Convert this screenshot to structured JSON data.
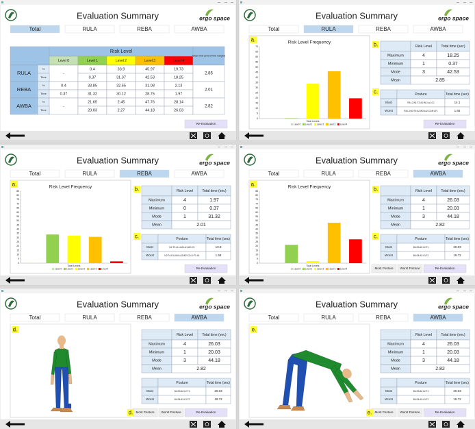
{
  "app": {
    "title": "Evaluation Summary",
    "logo": "ergo space",
    "tabs": [
      "Total",
      "RULA",
      "REBA",
      "AWBA"
    ]
  },
  "total_table": {
    "group_header": "Risk Level",
    "levels": [
      "Level 0",
      "Level 1",
      "Level 2",
      "Level 3",
      "Level 4"
    ],
    "level_colors": [
      "#c5e0b3",
      "#92d050",
      "#ffff00",
      "#ffc000",
      "#ff0000"
    ],
    "mean_header": "Mean risk Level (Time weight)",
    "units": [
      "%",
      "Time"
    ],
    "rows": [
      {
        "method": "RULA",
        "percent": [
          "-",
          0.4,
          33.9,
          45.97,
          19.73
        ],
        "time": [
          null,
          0.37,
          31.37,
          42.53,
          18.25
        ],
        "mean": 2.85
      },
      {
        "method": "REBA",
        "percent": [
          0.4,
          33.85,
          32.55,
          31.08,
          2.13
        ],
        "time": [
          0.37,
          31.32,
          30.12,
          28.75,
          1.97
        ],
        "mean": 2.01
      },
      {
        "method": "AWBA",
        "percent": [
          "-",
          21.65,
          2.45,
          47.76,
          28.14
        ],
        "time": [
          null,
          20.03,
          2.27,
          44.18,
          26.03
        ],
        "mean": 2.82
      }
    ]
  },
  "methods": {
    "RULA": {
      "chart": {
        "type": "bar",
        "title": "Risk Level Frequency",
        "x_label": "Total Levels",
        "categories": [
          "Level 0",
          "Level 1",
          "Level 2",
          "Level 3",
          "Level 4"
        ],
        "colors": [
          "#c5e0b3",
          "#92d050",
          "#ffff00",
          "#ffc000",
          "#ff0000"
        ],
        "values": [
          null,
          0.4,
          33.9,
          45.97,
          19.73
        ],
        "ylim": [
          0,
          70
        ],
        "yticks": [
          0,
          5,
          10,
          15,
          20,
          25,
          30,
          35,
          40,
          45,
          50,
          55,
          60,
          65,
          70
        ]
      },
      "stats": {
        "headers": [
          "Risk Level",
          "Total time (sec)"
        ],
        "rows": [
          {
            "label": "Maximum",
            "level": 4,
            "time": 18.25
          },
          {
            "label": "Minimum",
            "level": 1,
            "time": 0.37
          },
          {
            "label": "Mode",
            "level": 3,
            "time": 42.53
          }
        ],
        "mean_label": "Mean",
        "mean": 2.85
      },
      "posture": {
        "headers": [
          "Posture",
          "Total time (sec)"
        ],
        "rows": [
          {
            "label": "Most",
            "posture": "R3:L2:N1:T2:A1:W1:Ls1:C1",
            "time": 14.1
          },
          {
            "label": "Worst",
            "posture": "R4:L3:N3:T4:A2:W3:Ls2:C3:M1:F1",
            "time": 1.65
          }
        ]
      }
    },
    "REBA": {
      "chart": {
        "type": "bar",
        "title": "Risk Level Frequency",
        "x_label": "Total Levels",
        "categories": [
          "Level 0",
          "Level 1",
          "Level 2",
          "Level 3",
          "Level 4"
        ],
        "colors": [
          "#c5e0b3",
          "#92d050",
          "#ffff00",
          "#ffc000",
          "#ff0000"
        ],
        "values": [
          0.4,
          33.85,
          32.55,
          31.08,
          2.13
        ],
        "ylim": [
          0,
          85
        ],
        "yticks": [
          0,
          5,
          10,
          15,
          20,
          25,
          30,
          35,
          40,
          45,
          50,
          55,
          60,
          65,
          70,
          75,
          80,
          85
        ]
      },
      "stats": {
        "headers": [
          "Risk Level",
          "Total time (sec)"
        ],
        "rows": [
          {
            "label": "Maximum",
            "level": 4,
            "time": 1.97
          },
          {
            "label": "Minimum",
            "level": 0,
            "time": 0.37
          },
          {
            "label": "Mode",
            "level": 1,
            "time": 31.32
          }
        ],
        "mean_label": "Mean",
        "mean": 2.01
      },
      "posture": {
        "headers": [
          "Posture",
          "Total time (sec)"
        ],
        "rows": [
          {
            "label": "Most",
            "posture": "N1:T2:L1:UA2:LA1:W1:C1",
            "time": 13.8
          },
          {
            "label": "Worst",
            "posture": "N2:T4:L3:UA4:LA2:W2:C2:L1:F1:A1",
            "time": 1.58
          }
        ]
      }
    },
    "AWBA": {
      "chart": {
        "type": "bar",
        "title": "Risk Level Frequency",
        "x_label": "Total Levels",
        "categories": [
          "Level 0",
          "Level 1",
          "Level 2",
          "Level 3",
          "Level 4"
        ],
        "colors": [
          "#c5e0b3",
          "#92d050",
          "#ffff00",
          "#ffc000",
          "#ff0000"
        ],
        "values": [
          null,
          21.65,
          2.45,
          47.76,
          28.14
        ],
        "ylim": [
          0,
          85
        ],
        "yticks": [
          0,
          5,
          10,
          15,
          20,
          25,
          30,
          35,
          40,
          45,
          50,
          55,
          60,
          65,
          70,
          75,
          80,
          85
        ]
      },
      "stats": {
        "headers": [
          "Risk Level",
          "Total time (sec)"
        ],
        "rows": [
          {
            "label": "Maximum",
            "level": 4,
            "time": 26.03
          },
          {
            "label": "Minimum",
            "level": 1,
            "time": 20.03
          },
          {
            "label": "Mode",
            "level": 3,
            "time": 44.18
          }
        ],
        "mean_label": "Mean",
        "mean": 2.82
      },
      "posture": {
        "headers": [
          "Posture",
          "Total time (sec)"
        ],
        "rows": [
          {
            "label": "Most",
            "posture": "B4:S3:A2:L2:T1",
            "time": 20.03
          },
          {
            "label": "Worst",
            "posture": "B4:S4:A3:L3:T2",
            "time": 19.72
          }
        ]
      }
    }
  },
  "views": [
    {
      "active_tab": "Total",
      "buttons": [
        "Re-Evaluation"
      ]
    },
    {
      "active_tab": "RULA",
      "markers": [
        "a.",
        "b.",
        "c."
      ],
      "buttons": [
        "Re-Evaluation"
      ]
    },
    {
      "active_tab": "REBA",
      "markers": [
        "a.",
        "b.",
        "c."
      ],
      "buttons": [
        "Re-Evaluation"
      ]
    },
    {
      "active_tab": "AWBA",
      "markers": [
        "a.",
        "b.",
        "c."
      ],
      "buttons": [
        "Most Posture",
        "Worst Posture",
        "Re-Evaluation"
      ]
    },
    {
      "active_tab": "AWBA",
      "figure_marker": "d.",
      "button_marker": "d.",
      "buttons": [
        "Most Posture",
        "Worst Posture",
        "Re-Evaluation"
      ]
    },
    {
      "active_tab": "AWBA",
      "figure_marker": "e.",
      "button_marker": "e.",
      "buttons": [
        "Most Posture",
        "Worst Posture",
        "Re-Evaluation"
      ]
    }
  ]
}
